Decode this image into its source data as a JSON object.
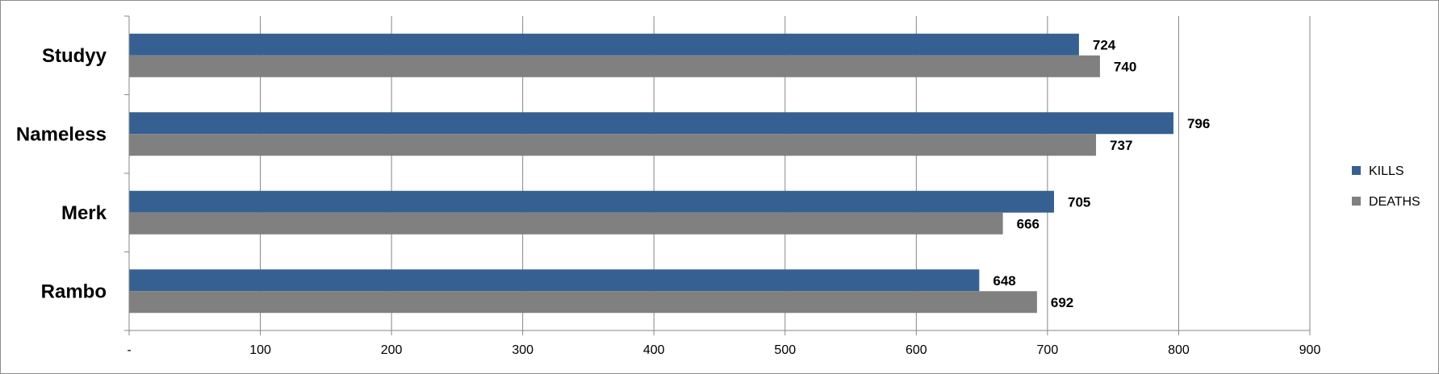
{
  "chart_data": {
    "type": "bar",
    "orientation": "horizontal",
    "categories": [
      "Studyy",
      "Nameless",
      "Merk",
      "Rambo"
    ],
    "series": [
      {
        "name": "KILLS",
        "values": [
          724,
          796,
          705,
          648
        ],
        "color": "#376092"
      },
      {
        "name": "DEATHS",
        "values": [
          740,
          737,
          666,
          692
        ],
        "color": "#808080"
      }
    ],
    "x_ticks": [
      "-",
      "100",
      "200",
      "300",
      "400",
      "500",
      "600",
      "700",
      "800",
      "900"
    ],
    "xlim": [
      0,
      900
    ],
    "grid": true,
    "legend": "right",
    "data_labels": true
  }
}
